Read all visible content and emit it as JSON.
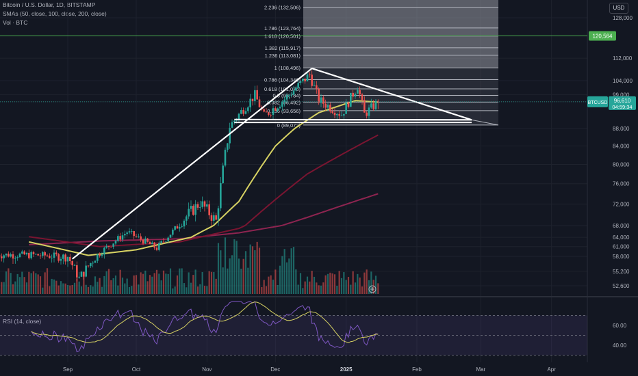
{
  "header": {
    "title": "Bitcoin / U.S. Dollar, 1D, BITSTAMP",
    "smas": "SMAs (50, close, 100, close, 200, close)",
    "vol": "Vol · BTC",
    "rsi": "RSI (14, close)",
    "currency": "USD"
  },
  "colors": {
    "bg": "#131722",
    "up": "#26a69a",
    "down": "#ef5350",
    "sma50": "#d7d263",
    "sma100": "#8a1c3e",
    "sma200": "#a0235a",
    "fib": "#787b86",
    "line": "#ffffff",
    "green_line": "#4caf50",
    "rsi": "#7e57c2",
    "rsi_ma": "#d7d263"
  },
  "chart_data": {
    "type": "candlestick",
    "symbol": "BTCUSD",
    "last_price_label": "96,610",
    "countdown_label": "04:59:34",
    "resistance_label": "120,564",
    "y_ticks": [
      "128,000",
      "120,564",
      "112,000",
      "104,000",
      "99,000",
      "96,610",
      "88,000",
      "84,000",
      "80,000",
      "76,000",
      "72,000",
      "68,000",
      "64,000",
      "61,000",
      "58,000",
      "55,200",
      "52,600"
    ],
    "x_ticks": [
      "Sep",
      "Oct",
      "Nov",
      "Dec",
      "2025",
      "Feb",
      "Mar",
      "Apr"
    ],
    "fib_levels": [
      {
        "label": "2.236 (132,506)",
        "value": 132506
      },
      {
        "label": "1.786 (123,764)",
        "value": 123764
      },
      {
        "label": "1.618 (120,501)",
        "value": 120501
      },
      {
        "label": "1.382 (115,917)",
        "value": 115917
      },
      {
        "label": "1.236 (113,081)",
        "value": 113081
      },
      {
        "label": "1 (108,496)",
        "value": 108496
      },
      {
        "label": "0.786 (104,340)",
        "value": 104340
      },
      {
        "label": "0.618 (101,076)",
        "value": 101076
      },
      {
        "label": "0.5 (98,784)",
        "value": 98784
      },
      {
        "label": "0.382 (96,492)",
        "value": 96492
      },
      {
        "label": "0.236 (93,656)",
        "value": 93656
      },
      {
        "label": "0 (89,072)",
        "value": 89072
      }
    ],
    "rsi_ticks": [
      "60.00",
      "40.00"
    ],
    "rsi_levels": [
      70,
      50,
      30
    ],
    "price_anchors": [
      {
        "date": "2024-08-15",
        "close": 58500
      },
      {
        "date": "2024-09-01",
        "close": 58000
      },
      {
        "date": "2024-09-06",
        "close": 53900
      },
      {
        "date": "2024-09-15",
        "close": 59000
      },
      {
        "date": "2024-09-27",
        "close": 65800
      },
      {
        "date": "2024-10-10",
        "close": 60500
      },
      {
        "date": "2024-10-20",
        "close": 68400
      },
      {
        "date": "2024-10-29",
        "close": 72300
      },
      {
        "date": "2024-11-05",
        "close": 68800
      },
      {
        "date": "2024-11-11",
        "close": 88700
      },
      {
        "date": "2024-11-22",
        "close": 98900
      },
      {
        "date": "2024-11-26",
        "close": 91900
      },
      {
        "date": "2024-12-05",
        "close": 97500
      },
      {
        "date": "2024-12-16",
        "close": 106100
      },
      {
        "date": "2024-12-20",
        "close": 97200
      },
      {
        "date": "2024-12-30",
        "close": 92400
      },
      {
        "date": "2025-01-06",
        "close": 102100
      },
      {
        "date": "2025-01-09",
        "close": 92500
      },
      {
        "date": "2025-01-12",
        "close": 94500
      },
      {
        "date": "2025-01-15",
        "close": 96610
      }
    ],
    "sma50_anchors": [
      {
        "date": "2024-08-15",
        "v": 62500
      },
      {
        "date": "2024-09-10",
        "v": 58300
      },
      {
        "date": "2024-10-01",
        "v": 60000
      },
      {
        "date": "2024-10-25",
        "v": 64000
      },
      {
        "date": "2024-11-15",
        "v": 72500
      },
      {
        "date": "2024-12-01",
        "v": 84000
      },
      {
        "date": "2024-12-20",
        "v": 93000
      },
      {
        "date": "2025-01-05",
        "v": 97000
      },
      {
        "date": "2025-01-15",
        "v": 96500
      }
    ],
    "sma100_anchors": [
      {
        "date": "2024-08-15",
        "v": 64200
      },
      {
        "date": "2024-09-15",
        "v": 61000
      },
      {
        "date": "2024-10-20",
        "v": 62500
      },
      {
        "date": "2024-11-15",
        "v": 67000
      },
      {
        "date": "2024-12-15",
        "v": 78000
      },
      {
        "date": "2025-01-15",
        "v": 86500
      }
    ],
    "sma200_anchors": [
      {
        "date": "2024-08-15",
        "v": 61600
      },
      {
        "date": "2024-09-15",
        "v": 62800
      },
      {
        "date": "2024-10-20",
        "v": 63500
      },
      {
        "date": "2024-11-15",
        "v": 65500
      },
      {
        "date": "2024-12-15",
        "v": 69500
      },
      {
        "date": "2025-01-15",
        "v": 74000
      }
    ],
    "trend_lines": [
      {
        "from": {
          "date": "2024-09-03",
          "price": 57500
        },
        "to": {
          "date": "2024-12-17",
          "price": 108300
        }
      },
      {
        "from": {
          "date": "2024-12-17",
          "price": 108300
        },
        "to": {
          "date": "2025-02-25",
          "price": 90700
        }
      },
      {
        "from": {
          "date": "2024-11-13",
          "price": 90800
        },
        "to": {
          "date": "2025-02-25",
          "price": 90700
        }
      },
      {
        "from": {
          "date": "2024-11-13",
          "price": 89900
        },
        "to": {
          "date": "2025-02-25",
          "price": 89900
        }
      }
    ]
  }
}
